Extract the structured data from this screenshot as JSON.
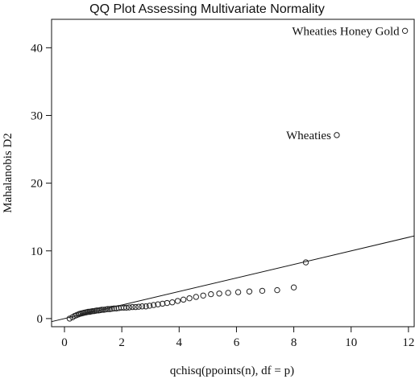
{
  "chart_data": {
    "type": "scatter",
    "title": "QQ Plot Assessing Multivariate Normality",
    "xlabel": "qchisq(ppoints(n), df = p)",
    "ylabel": "Mahalanobis D2",
    "xlim": [
      -0.45,
      12.2
    ],
    "ylim": [
      -1.2,
      44.2
    ],
    "x_ticks": [
      0,
      2,
      4,
      6,
      8,
      10,
      12
    ],
    "y_ticks": [
      0,
      10,
      20,
      30,
      40
    ],
    "reference_line": {
      "intercept": 0,
      "slope": 1
    },
    "annotations": [
      {
        "text": "Wheaties Honey Gold",
        "x": 11.88,
        "y": 42.5,
        "position": "left"
      },
      {
        "text": "Wheaties",
        "x": 9.5,
        "y": 27.1,
        "position": "left"
      }
    ],
    "x": [
      0.18,
      0.28,
      0.36,
      0.42,
      0.48,
      0.53,
      0.58,
      0.63,
      0.68,
      0.73,
      0.78,
      0.83,
      0.88,
      0.93,
      0.98,
      1.03,
      1.08,
      1.13,
      1.19,
      1.25,
      1.31,
      1.37,
      1.44,
      1.51,
      1.58,
      1.65,
      1.73,
      1.81,
      1.89,
      1.98,
      2.07,
      2.16,
      2.26,
      2.37,
      2.48,
      2.59,
      2.71,
      2.84,
      2.97,
      3.11,
      3.26,
      3.42,
      3.58,
      3.76,
      3.95,
      4.15,
      4.36,
      4.59,
      4.84,
      5.11,
      5.4,
      5.71,
      6.06,
      6.45,
      6.9,
      7.42,
      8.0,
      8.42,
      9.5,
      11.88
    ],
    "y": [
      0.0,
      0.2,
      0.4,
      0.5,
      0.6,
      0.7,
      0.75,
      0.8,
      0.85,
      0.9,
      0.95,
      1.0,
      1.0,
      1.05,
      1.1,
      1.1,
      1.15,
      1.2,
      1.2,
      1.25,
      1.3,
      1.3,
      1.35,
      1.4,
      1.4,
      1.45,
      1.5,
      1.5,
      1.55,
      1.6,
      1.6,
      1.6,
      1.65,
      1.7,
      1.7,
      1.75,
      1.8,
      1.8,
      1.9,
      2.0,
      2.1,
      2.2,
      2.3,
      2.4,
      2.6,
      2.8,
      3.0,
      3.2,
      3.4,
      3.6,
      3.7,
      3.8,
      3.9,
      4.0,
      4.1,
      4.2,
      4.6,
      8.3,
      27.1,
      42.5
    ]
  }
}
